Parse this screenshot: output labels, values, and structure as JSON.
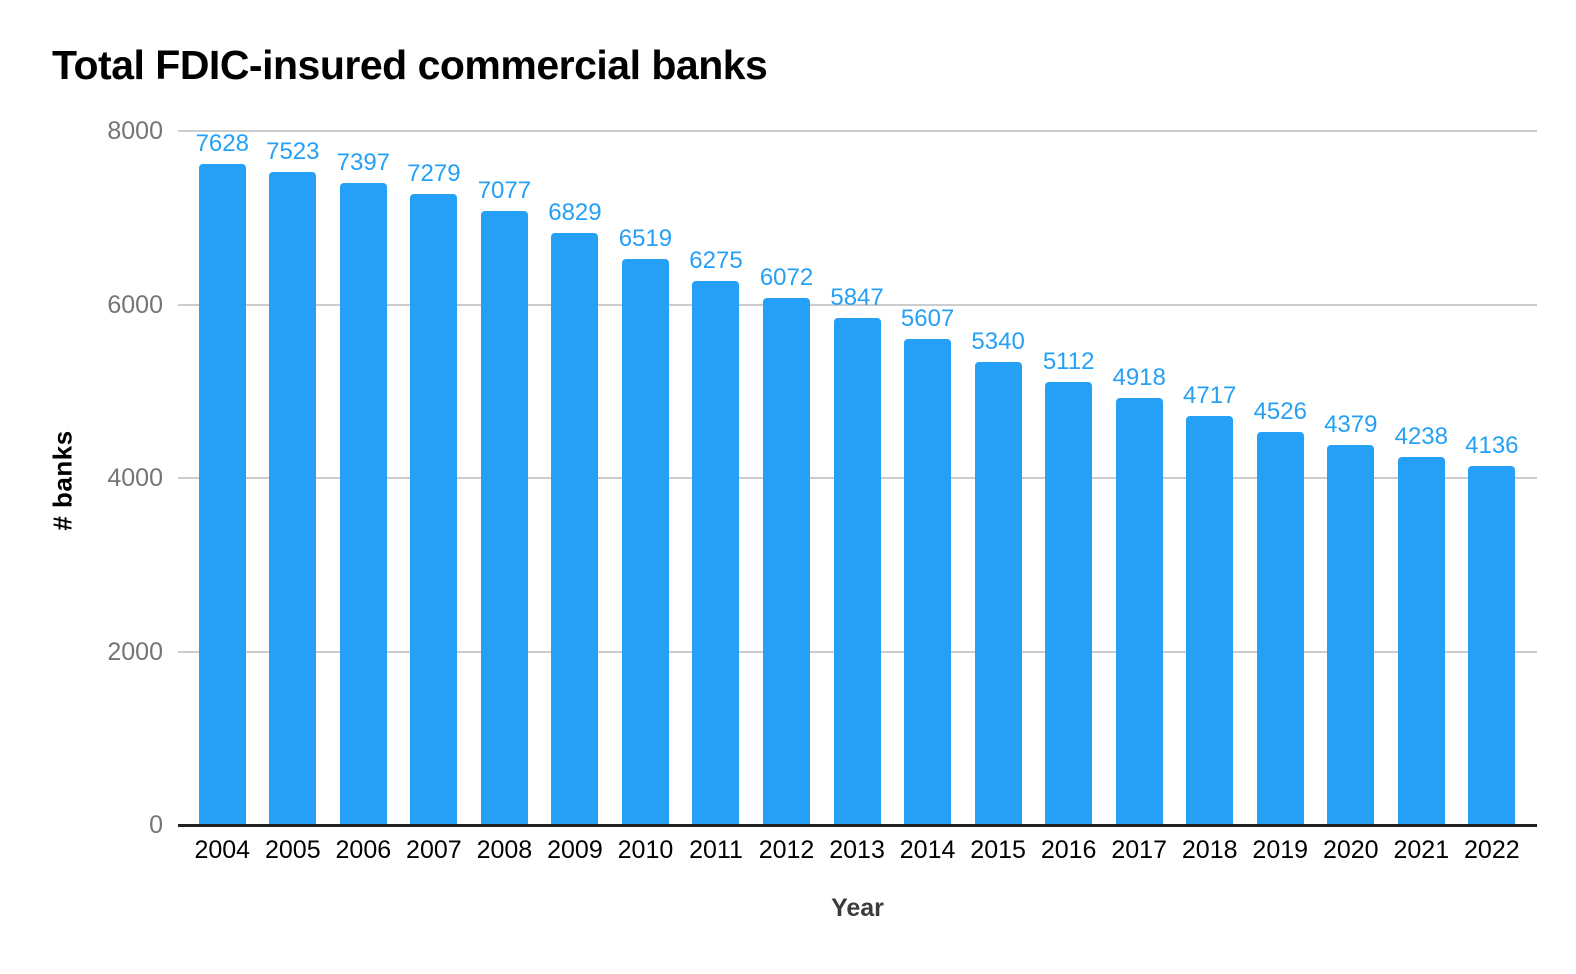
{
  "chart_data": {
    "type": "bar",
    "title": "Total FDIC-insured commercial banks",
    "xlabel": "Year",
    "ylabel": "# banks",
    "categories": [
      "2004",
      "2005",
      "2006",
      "2007",
      "2008",
      "2009",
      "2010",
      "2011",
      "2012",
      "2013",
      "2014",
      "2015",
      "2016",
      "2017",
      "2018",
      "2019",
      "2020",
      "2021",
      "2022"
    ],
    "values": [
      7628,
      7523,
      7397,
      7279,
      7077,
      6829,
      6519,
      6275,
      6072,
      5847,
      5607,
      5340,
      5112,
      4918,
      4717,
      4526,
      4379,
      4238,
      4136
    ],
    "y_ticks": [
      0,
      2000,
      4000,
      6000,
      8000
    ],
    "ylim": [
      0,
      8000
    ],
    "grid": true,
    "legend": "none",
    "value_labels_shown": true,
    "colors": {
      "bar": "#24A0F7",
      "value_label": "#24A0F7",
      "gridline": "#cccccc",
      "axis_line": "#212121",
      "y_tick_label": "#757575",
      "x_tick_label": "#000000",
      "title": "#000000",
      "axis_title": "#3c3c3c",
      "background": "#ffffff"
    }
  }
}
